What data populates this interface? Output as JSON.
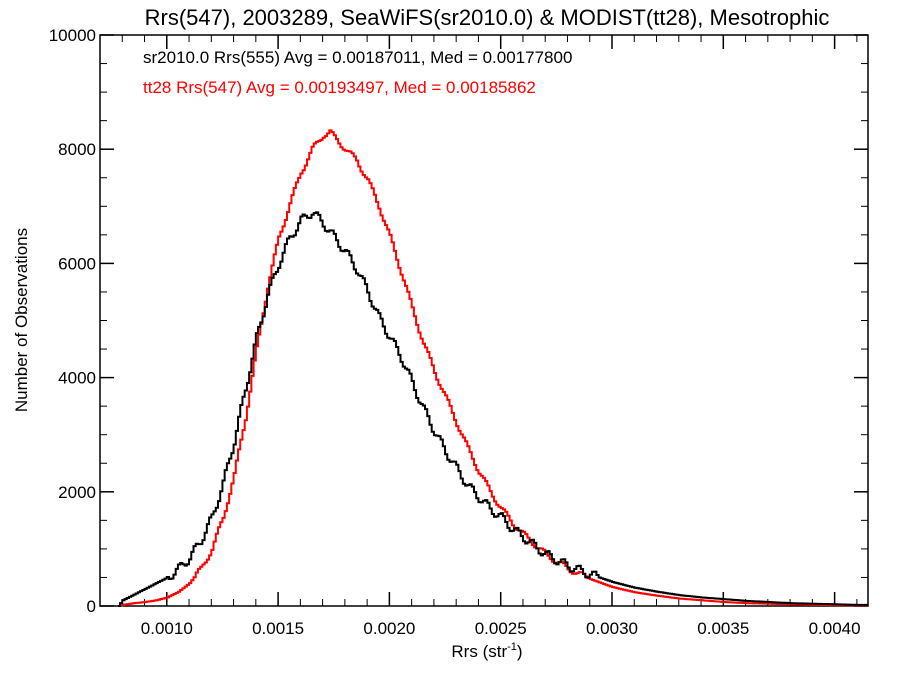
{
  "chart_data": {
    "type": "line",
    "title": "Rrs(547), 2003289, SeaWiFS(sr2010.0) & MODIST(tt28), Mesotrophic",
    "xlabel": "Rrs (str",
    "xlabel_sup": "-1",
    "xlabel_end": ")",
    "ylabel": "Number of Observations",
    "xlim": [
      0.0007,
      0.00415
    ],
    "ylim": [
      0,
      10000
    ],
    "xticks": [
      0.001,
      0.0015,
      0.002,
      0.0025,
      0.003,
      0.0035,
      0.004
    ],
    "xtick_labels": [
      "0.0010",
      "0.0015",
      "0.0020",
      "0.0025",
      "0.0030",
      "0.0035",
      "0.0040"
    ],
    "yticks": [
      0,
      2000,
      4000,
      6000,
      8000,
      10000
    ],
    "ytick_labels": [
      "0",
      "2000",
      "4000",
      "6000",
      "8000",
      "10000"
    ],
    "legend_placement": "top-left",
    "series": [
      {
        "label": "sr2010.0 Rrs(555) Avg = 0.00187011, Med = 0.00177800",
        "color": "#000000",
        "x": [
          0.00078,
          0.0008,
          0.00085,
          0.0009,
          0.00095,
          0.001,
          0.00105,
          0.0011,
          0.00115,
          0.0012,
          0.00125,
          0.0013,
          0.00135,
          0.0014,
          0.00145,
          0.0015,
          0.00155,
          0.0016,
          0.00163,
          0.00165,
          0.0017,
          0.00175,
          0.0018,
          0.00185,
          0.0019,
          0.00195,
          0.002,
          0.00205,
          0.0021,
          0.00215,
          0.0022,
          0.00225,
          0.0023,
          0.00235,
          0.0024,
          0.00245,
          0.0025,
          0.00255,
          0.0026,
          0.0027,
          0.0028,
          0.0029,
          0.003,
          0.0031,
          0.0032,
          0.0033,
          0.0034,
          0.0035,
          0.0036,
          0.0037,
          0.0038,
          0.0039,
          0.004,
          0.0041
        ],
        "y": [
          0,
          100,
          200,
          300,
          400,
          500,
          650,
          850,
          1150,
          1550,
          2150,
          2900,
          3800,
          4700,
          5450,
          6000,
          6450,
          6750,
          6850,
          6900,
          6700,
          6450,
          6200,
          5900,
          5500,
          5050,
          4700,
          4350,
          3900,
          3450,
          3050,
          2700,
          2400,
          2100,
          1900,
          1700,
          1550,
          1350,
          1200,
          900,
          700,
          550,
          420,
          320,
          250,
          190,
          150,
          120,
          90,
          70,
          50,
          40,
          30,
          20
        ]
      },
      {
        "label": "tt28 Rrs(547) Avg = 0.00193497, Med = 0.00185862",
        "color": "#ff0000",
        "x": [
          0.00078,
          0.0008,
          0.00085,
          0.0009,
          0.00095,
          0.001,
          0.00105,
          0.0011,
          0.00115,
          0.0012,
          0.00125,
          0.0013,
          0.00135,
          0.0014,
          0.00145,
          0.0015,
          0.00155,
          0.0016,
          0.00165,
          0.0017,
          0.00173,
          0.00175,
          0.0018,
          0.00185,
          0.0019,
          0.00195,
          0.002,
          0.00205,
          0.0021,
          0.00215,
          0.0022,
          0.00225,
          0.0023,
          0.00235,
          0.0024,
          0.00245,
          0.0025,
          0.00255,
          0.0026,
          0.0027,
          0.0028,
          0.0029,
          0.003,
          0.0031,
          0.0032,
          0.0033,
          0.0034,
          0.0035,
          0.0036,
          0.0037,
          0.0038,
          0.0039,
          0.004,
          0.0041
        ],
        "y": [
          0,
          20,
          50,
          70,
          100,
          150,
          250,
          400,
          650,
          1000,
          1550,
          2300,
          3300,
          4500,
          5600,
          6450,
          7050,
          7600,
          8000,
          8250,
          8300,
          8200,
          8000,
          7800,
          7450,
          7000,
          6450,
          5850,
          5200,
          4600,
          4100,
          3650,
          3200,
          2750,
          2350,
          2000,
          1700,
          1450,
          1250,
          900,
          650,
          470,
          330,
          240,
          180,
          130,
          100,
          70,
          50,
          40,
          30,
          20,
          15,
          10
        ]
      }
    ]
  }
}
